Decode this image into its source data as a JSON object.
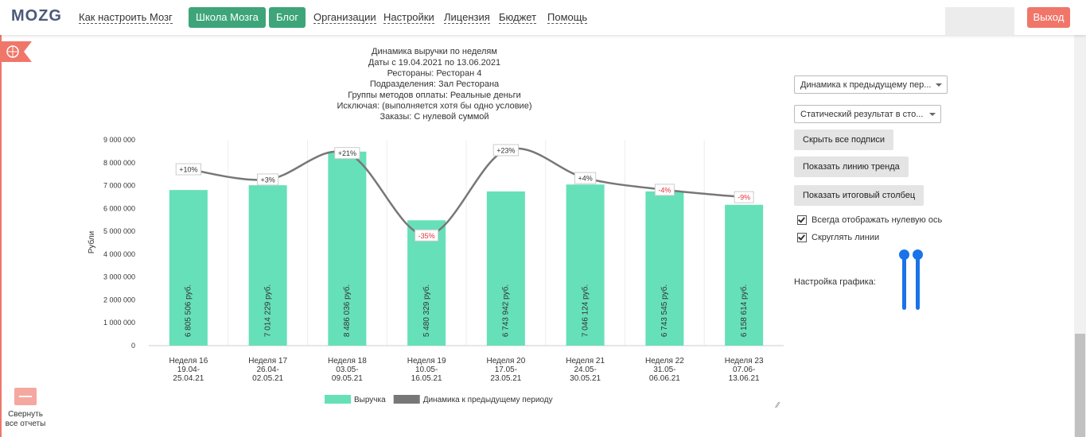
{
  "header": {
    "logo": "MOZG",
    "nav": [
      "Как настроить Мозг",
      "Школа Мозга",
      "Блог",
      "Организации",
      "Настройки",
      "Лицензия",
      "Бюджет",
      "Помощь"
    ],
    "logout": "Выход"
  },
  "sidebar": {
    "collapse": "Свернуть все отчеты"
  },
  "controls": {
    "selects": [
      "Динамика к предыдущему пер...",
      "Статический результат в сто..."
    ],
    "buttons": [
      "Скрыть все подписи",
      "Показать линию тренда",
      "Показать итоговый столбец"
    ],
    "checkboxes": [
      {
        "label": "Всегда отображать нулевую ось",
        "checked": true
      },
      {
        "label": "Скруглять линии",
        "checked": true
      }
    ],
    "settings_label": "Настройка графика:"
  },
  "chart_data": {
    "type": "bar",
    "title": "Динамика выручки по неделям",
    "subtitle": [
      "Даты с 19.04.2021 по 13.06.2021",
      "Рестораны: Ресторан 4",
      "Подразделения: Зал Ресторана",
      "Группы методов оплаты: Реальные деньги",
      "Исключая: (выполняется хотя бы одно условие)",
      "Заказы: С нулевой суммой"
    ],
    "ylabel": "Рубли",
    "categories": [
      "Неделя 16\n19.04-\n25.04.21",
      "Неделя 17\n26.04-\n02.05.21",
      "Неделя 18\n03.05-\n09.05.21",
      "Неделя 19\n10.05-\n16.05.21",
      "Неделя 20\n17.05-\n23.05.21",
      "Неделя 21\n24.05-\n30.05.21",
      "Неделя 22\n31.05-\n06.06.21",
      "Неделя 23\n07.06-\n13.06.21"
    ],
    "series": [
      {
        "name": "Выручка",
        "type": "bar",
        "color": "#66e0b8",
        "values": [
          6805506,
          7014229,
          8486036,
          5480329,
          6743942,
          7046124,
          6743545,
          6158614
        ],
        "value_labels": [
          "6 805 506 руб.",
          "7 014 229 руб.",
          "8 486 036 руб.",
          "5 480 329 руб.",
          "6 743 942 руб.",
          "7 046 124 руб.",
          "6 743 545 руб.",
          "6 158 614 руб."
        ]
      },
      {
        "name": "Динамика к предыдущему периоду",
        "type": "line",
        "axis": "y2",
        "color": "#777777",
        "smooth": true,
        "values": [
          10,
          3,
          21,
          -35,
          23,
          4,
          -4,
          -9
        ],
        "value_labels": [
          "+10%",
          "+3%",
          "+21%",
          "-35%",
          "+23%",
          "+4%",
          "-4%",
          "-9%"
        ]
      }
    ],
    "ylim": [
      0,
      9000000
    ],
    "yticks": [
      0,
      {
        "value": 1000000,
        "label": "1 000 000"
      },
      {
        "value": 2000000,
        "label": "2 000 000"
      },
      {
        "value": 3000000,
        "label": "3 000 000"
      },
      {
        "value": 4000000,
        "label": "4 000 000"
      },
      {
        "value": 5000000,
        "label": "5 000 000"
      },
      {
        "value": 6000000,
        "label": "6 000 000"
      },
      {
        "value": 7000000,
        "label": "7 000 000"
      },
      {
        "value": 8000000,
        "label": "8 000 000"
      },
      {
        "value": 9000000,
        "label": "9 000 000"
      }
    ],
    "y2lim": [
      -110,
      30
    ],
    "negative_color": "#e8303a",
    "legend": "bottom"
  }
}
